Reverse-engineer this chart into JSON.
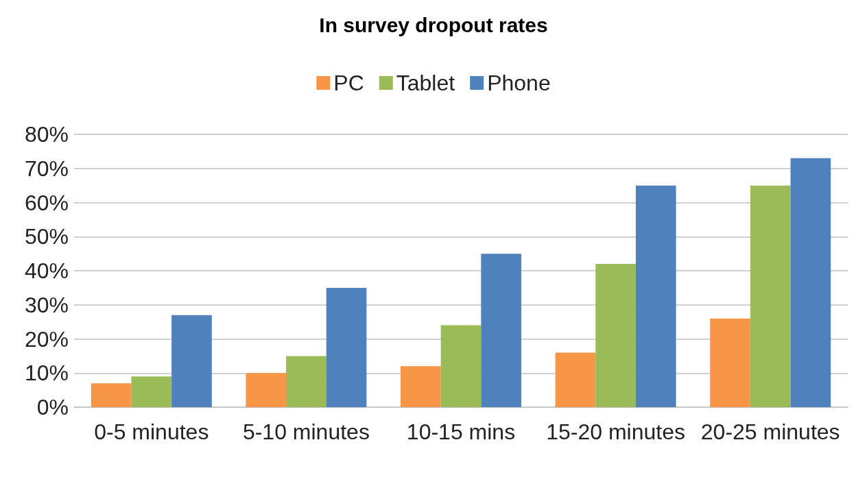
{
  "chart_data": {
    "type": "bar",
    "title": "In survey dropout rates",
    "categories": [
      "0-5 minutes",
      "5-10 minutes",
      "10-15 mins",
      "15-20 minutes",
      "20-25 minutes"
    ],
    "series": [
      {
        "name": "PC",
        "color": "#f79646",
        "values": [
          7,
          10,
          12,
          16,
          26
        ]
      },
      {
        "name": "Tablet",
        "color": "#9bbb59",
        "values": [
          9,
          15,
          24,
          42,
          65
        ]
      },
      {
        "name": "Phone",
        "color": "#4f81bd",
        "values": [
          27,
          35,
          45,
          65,
          73
        ]
      }
    ],
    "ylim": [
      0,
      80
    ],
    "yticks": [
      {
        "value": 0,
        "label": "0%"
      },
      {
        "value": 10,
        "label": "10%"
      },
      {
        "value": 20,
        "label": "20%"
      },
      {
        "value": 30,
        "label": "30%"
      },
      {
        "value": 40,
        "label": "40%"
      },
      {
        "value": 50,
        "label": "50%"
      },
      {
        "value": 60,
        "label": "60%"
      },
      {
        "value": 70,
        "label": "70%"
      },
      {
        "value": 80,
        "label": "80%"
      }
    ],
    "grid": "y",
    "legend": "top"
  }
}
